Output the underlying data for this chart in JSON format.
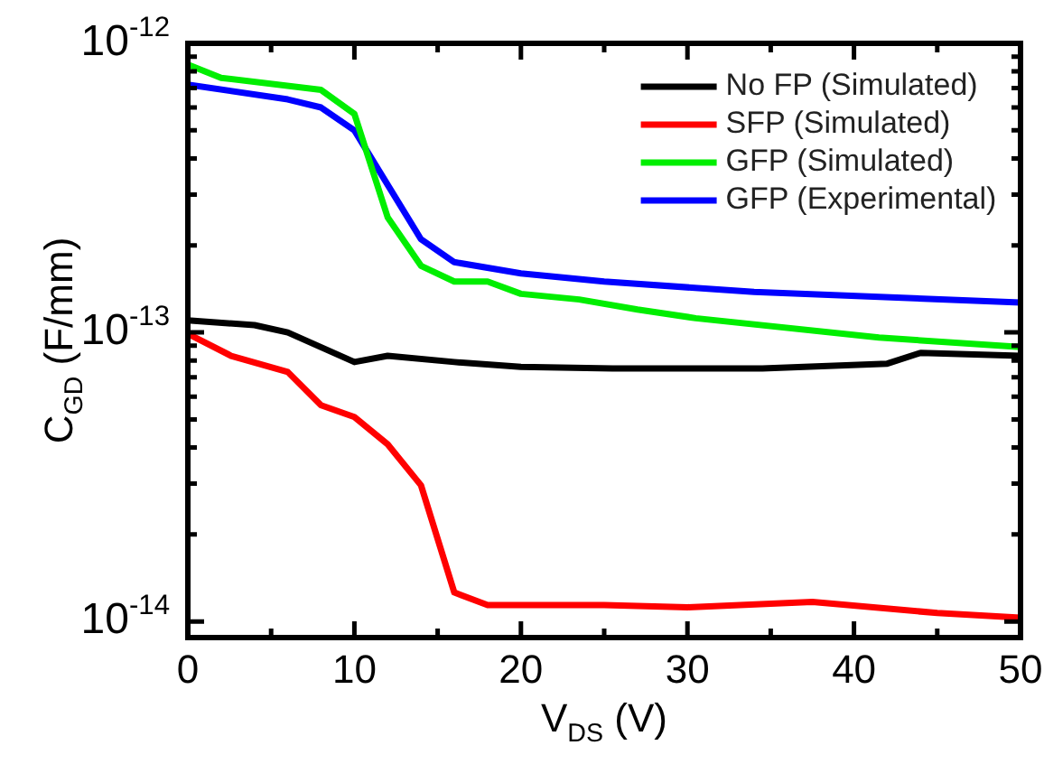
{
  "chart_data": {
    "type": "line",
    "xlabel": "V$_{DS}$ (V)",
    "ylabel": "C$_{GD}$ (F/mm)",
    "log": "y",
    "legend": "top right",
    "grid": false,
    "marker": "none",
    "line_style": "solid",
    "xlim": [
      0,
      50
    ],
    "xticks": [
      0,
      {
        "value": 5,
        "label": null
      },
      10,
      {
        "value": 15,
        "label": null
      },
      20,
      {
        "value": 25,
        "label": null
      },
      30,
      {
        "value": 35,
        "label": null
      },
      40,
      {
        "value": 45,
        "label": null
      },
      50
    ],
    "ylim": [
      8.8e-15,
      1e-12
    ],
    "yticks": [
      {
        "value": 1e-14,
        "label": "10$^{-14}$"
      },
      {
        "value": 2e-14,
        "label": null
      },
      {
        "value": 3e-14,
        "label": null
      },
      {
        "value": 4e-14,
        "label": null
      },
      {
        "value": 5e-14,
        "label": null
      },
      {
        "value": 6e-14,
        "label": null
      },
      {
        "value": 7e-14,
        "label": null
      },
      {
        "value": 8e-14,
        "label": null
      },
      {
        "value": 9e-14,
        "label": null
      },
      {
        "value": 1e-13,
        "label": "10$^{-13}$"
      },
      {
        "value": 2e-13,
        "label": null
      },
      {
        "value": 3e-13,
        "label": null
      },
      {
        "value": 4e-13,
        "label": null
      },
      {
        "value": 5e-13,
        "label": null
      },
      {
        "value": 6e-13,
        "label": null
      },
      {
        "value": 7e-13,
        "label": null
      },
      {
        "value": 8e-13,
        "label": null
      },
      {
        "value": 9e-13,
        "label": null
      },
      {
        "value": 1e-12,
        "label": "10$^{-12}$"
      }
    ],
    "series": [
      {
        "name": "No FP (Simulated)",
        "color": "#000000",
        "x": [
          0,
          4,
          6,
          10,
          12,
          16,
          20,
          25.5,
          34.5,
          42,
          44,
          50
        ],
        "values": [
          1.1e-13,
          1.06e-13,
          1e-13,
          7.9e-14,
          8.3e-14,
          7.9e-14,
          7.6e-14,
          7.5e-14,
          7.5e-14,
          7.8e-14,
          8.5e-14,
          8.3e-14
        ]
      },
      {
        "name": "SFP (Simulated)",
        "color": "#ff0000",
        "x": [
          0,
          2.6,
          6,
          8,
          10,
          12,
          14,
          16,
          18,
          25,
          30,
          37.5,
          45,
          50
        ],
        "values": [
          9.9e-14,
          8.3e-14,
          7.3e-14,
          5.6e-14,
          5.1e-14,
          4.1e-14,
          2.96e-14,
          1.26e-14,
          1.14e-14,
          1.14e-14,
          1.12e-14,
          1.17e-14,
          1.07e-14,
          1.03e-14
        ]
      },
      {
        "name": "GFP (Simulated)",
        "color": "#00ee00",
        "x": [
          0,
          2,
          8,
          10,
          12,
          14,
          16,
          18,
          20,
          23.5,
          27,
          30.5,
          41.5,
          50
        ],
        "values": [
          8.45e-13,
          7.6e-13,
          6.9e-13,
          5.7e-13,
          2.5e-13,
          1.7e-13,
          1.5e-13,
          1.5e-13,
          1.36e-13,
          1.3e-13,
          1.2e-13,
          1.12e-13,
          9.6e-14,
          8.9e-14
        ]
      },
      {
        "name": "GFP (Experimental)",
        "color": "#0000ff",
        "x": [
          0,
          6,
          8,
          10,
          14,
          16,
          20,
          25,
          34,
          50
        ],
        "values": [
          7.2e-13,
          6.4e-13,
          6e-13,
          5e-13,
          2.1e-13,
          1.75e-13,
          1.6e-13,
          1.5e-13,
          1.38e-13,
          1.27e-13
        ]
      }
    ]
  }
}
